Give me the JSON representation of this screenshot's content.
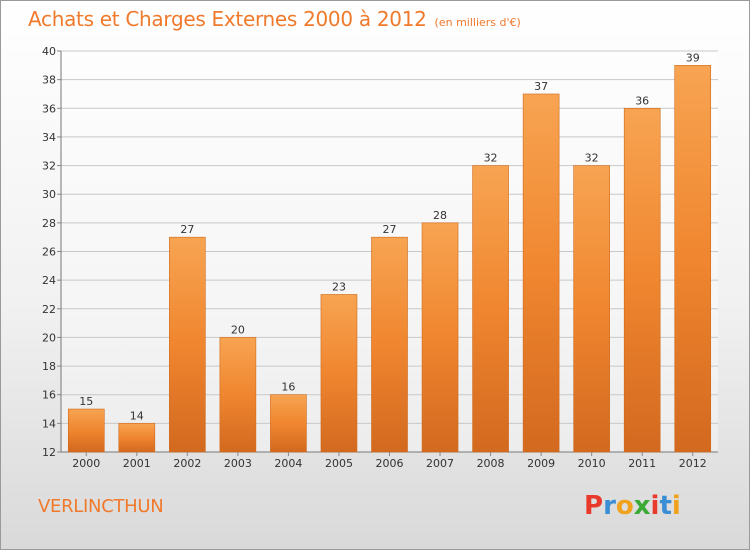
{
  "header": {
    "title": "Achats et Charges Externes 2000 à 2012",
    "subtitle": "(en milliers d'€)"
  },
  "footer": {
    "commune": "VERLINCTHUN",
    "logo": [
      "P",
      "r",
      "o",
      "x",
      "i",
      "t",
      "i"
    ],
    "logo_colors": [
      "#e8392a",
      "#3a8fd4",
      "#f0a21c",
      "#3aaa35",
      "#e8392a",
      "#3a8fd4",
      "#f0a21c"
    ]
  },
  "chart_data": {
    "type": "bar",
    "title": "Achats et Charges Externes 2000 à 2012",
    "subtitle": "(en milliers d'€)",
    "categories": [
      "2000",
      "2001",
      "2002",
      "2003",
      "2004",
      "2005",
      "2006",
      "2007",
      "2008",
      "2009",
      "2010",
      "2011",
      "2012"
    ],
    "values": [
      15,
      14,
      27,
      20,
      16,
      23,
      27,
      28,
      32,
      37,
      32,
      36,
      39
    ],
    "ylim": [
      12,
      40
    ],
    "yticks": [
      12,
      14,
      16,
      18,
      20,
      22,
      24,
      26,
      28,
      30,
      32,
      34,
      36,
      38,
      40
    ],
    "grid": true,
    "bar_color": "#f0862f",
    "bar_color_light": "#f7a452",
    "bar_color_dark": "#d2691f"
  }
}
